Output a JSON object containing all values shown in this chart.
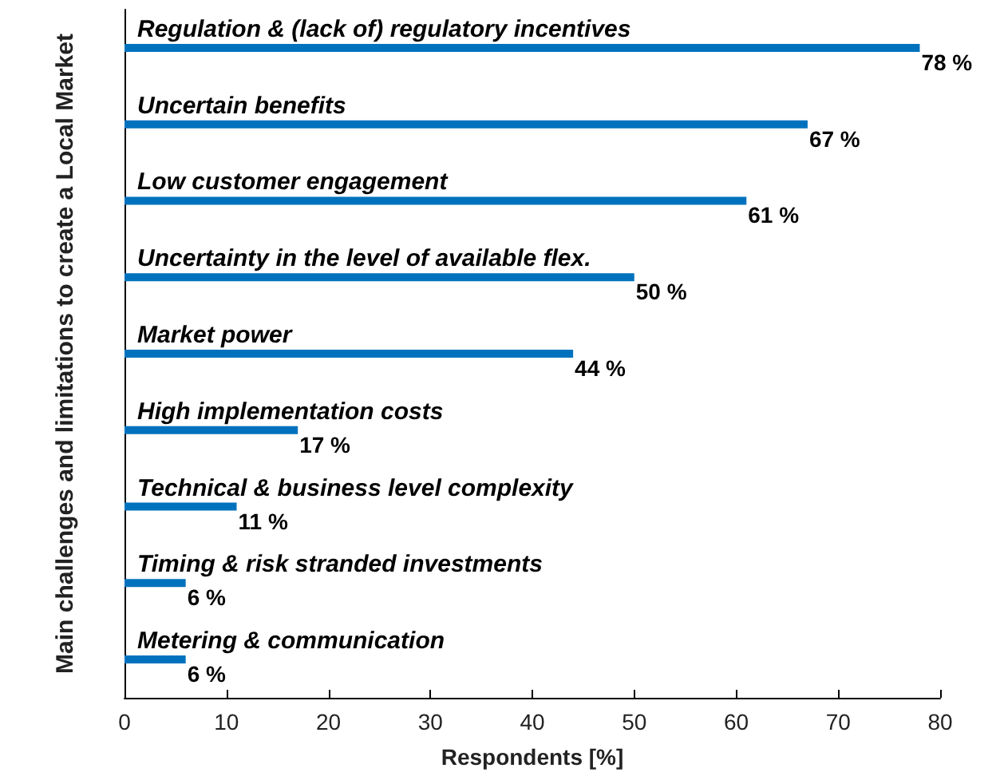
{
  "chart_data": {
    "type": "bar",
    "orientation": "horizontal",
    "xlabel": "Respondents [%]",
    "ylabel": "Main challenges and limitations to create a Local Market",
    "categories": [
      "Regulation & (lack of) regulatory incentives",
      "Uncertain benefits",
      "Low customer engagement",
      "Uncertainty in the level of available flex.",
      "Market power",
      "High implementation costs",
      "Technical & business level complexity",
      "Timing & risk stranded investments",
      "Metering & communication"
    ],
    "values": [
      78,
      67,
      61,
      50,
      44,
      17,
      11,
      6,
      6
    ],
    "value_labels": [
      "78 %",
      "67 %",
      "61 %",
      "50 %",
      "44 %",
      "17 %",
      "11 %",
      "6 %",
      "6 %"
    ],
    "color": "#0072bd",
    "xlim": [
      0,
      80
    ],
    "xticks": [
      0,
      10,
      20,
      30,
      40,
      50,
      60,
      70,
      80
    ]
  }
}
